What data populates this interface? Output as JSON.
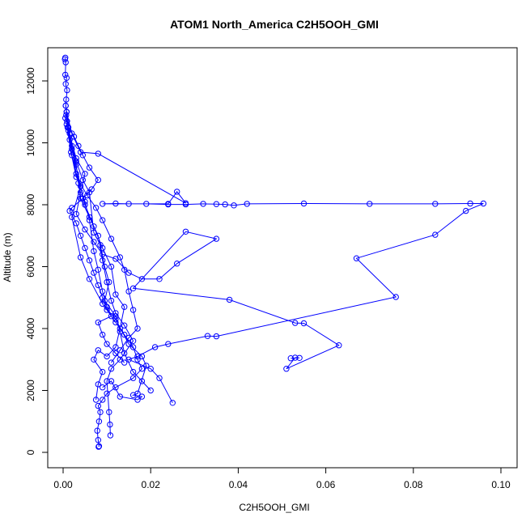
{
  "chart_data": {
    "type": "line",
    "title": "ATOM1 North_America C2H5OOH_GMI",
    "xlabel": "C2H5OOH_GMI",
    "ylabel": "Altitude (m)",
    "xlim": [
      0,
      0.1
    ],
    "ylim": [
      0,
      12800
    ],
    "x_ticks": [
      0,
      0.02,
      0.04,
      0.06,
      0.08,
      0.1
    ],
    "x_tick_labels": [
      "0.00",
      "0.02",
      "0.04",
      "0.06",
      "0.08",
      "0.10"
    ],
    "y_ticks": [
      0,
      2000,
      4000,
      6000,
      8000,
      10000,
      12000
    ],
    "y_tick_labels": [
      "0",
      "2000",
      "4000",
      "6000",
      "8000",
      "10000",
      "12000"
    ],
    "grid": false,
    "legend": "none",
    "series": [
      {
        "color": "#0000ff",
        "marker": "open-circle",
        "points": [
          [
            0.0005,
            12750
          ],
          [
            0.0004,
            12700
          ],
          [
            0.0006,
            12600
          ],
          [
            0.0005,
            12200
          ],
          [
            0.0008,
            12100
          ],
          [
            0.0006,
            11900
          ],
          [
            0.0009,
            11700
          ],
          [
            0.0007,
            11400
          ],
          [
            0.0006,
            11200
          ],
          [
            0.0008,
            11000
          ],
          [
            0.0005,
            10800
          ],
          [
            0.0012,
            10500
          ],
          [
            0.0025,
            10200
          ],
          [
            0.0035,
            9900
          ],
          [
            0.0045,
            9600
          ],
          [
            0.006,
            9200
          ],
          [
            0.008,
            8800
          ],
          [
            0.0065,
            8500
          ],
          [
            0.0045,
            8200
          ],
          [
            0.002,
            7900
          ],
          [
            0.0015,
            7800
          ],
          [
            0.003,
            7400
          ],
          [
            0.004,
            7000
          ],
          [
            0.005,
            6600
          ],
          [
            0.006,
            6200
          ],
          [
            0.007,
            5800
          ],
          [
            0.008,
            5400
          ],
          [
            0.009,
            5000
          ],
          [
            0.01,
            4600
          ],
          [
            0.012,
            4200
          ],
          [
            0.014,
            3800
          ],
          [
            0.016,
            3400
          ],
          [
            0.017,
            3000
          ],
          [
            0.018,
            2700
          ],
          [
            0.016,
            2400
          ],
          [
            0.012,
            2100
          ],
          [
            0.01,
            1900
          ],
          [
            0.009,
            1700
          ],
          [
            0.008,
            1500
          ],
          [
            0.0085,
            1300
          ],
          [
            0.0082,
            1000
          ],
          [
            0.0078,
            700
          ],
          [
            0.008,
            400
          ],
          [
            0.0082,
            200
          ],
          [
            0.0081,
            180
          ]
        ]
      },
      {
        "color": "#0000ff",
        "marker": "open-circle",
        "points": [
          [
            0.0008,
            11000
          ],
          [
            0.002,
            10300
          ],
          [
            0.004,
            9700
          ],
          [
            0.008,
            9650
          ],
          [
            0.028,
            8050
          ],
          [
            0.026,
            8420
          ],
          [
            0.024,
            8030
          ],
          [
            0.009,
            8030
          ],
          [
            0.012,
            8040
          ],
          [
            0.015,
            8030
          ],
          [
            0.019,
            8030
          ],
          [
            0.024,
            8010
          ],
          [
            0.028,
            8010
          ],
          [
            0.032,
            8030
          ],
          [
            0.035,
            8020
          ],
          [
            0.037,
            8010
          ],
          [
            0.039,
            7980
          ],
          [
            0.042,
            8030
          ],
          [
            0.055,
            8040
          ],
          [
            0.07,
            8030
          ],
          [
            0.085,
            8030
          ],
          [
            0.093,
            8040
          ],
          [
            0.096,
            8040
          ],
          [
            0.092,
            7800
          ],
          [
            0.085,
            7030
          ],
          [
            0.067,
            6270
          ],
          [
            0.076,
            5020
          ],
          [
            0.035,
            3750
          ],
          [
            0.033,
            3760
          ],
          [
            0.024,
            3500
          ],
          [
            0.021,
            3400
          ],
          [
            0.017,
            3100
          ],
          [
            0.015,
            3000
          ],
          [
            0.02,
            2700
          ],
          [
            0.022,
            2400
          ],
          [
            0.025,
            1600
          ]
        ]
      },
      {
        "color": "#0000ff",
        "marker": "open-circle",
        "points": [
          [
            0.001,
            10500
          ],
          [
            0.003,
            9500
          ],
          [
            0.005,
            9000
          ],
          [
            0.004,
            8400
          ],
          [
            0.003,
            7700
          ],
          [
            0.005,
            7200
          ],
          [
            0.007,
            6800
          ],
          [
            0.009,
            6400
          ],
          [
            0.012,
            6250
          ],
          [
            0.015,
            5800
          ],
          [
            0.018,
            5600
          ],
          [
            0.022,
            5600
          ],
          [
            0.026,
            6100
          ],
          [
            0.035,
            6900
          ],
          [
            0.028,
            7130
          ],
          [
            0.016,
            5300
          ],
          [
            0.038,
            4930
          ],
          [
            0.053,
            4180
          ],
          [
            0.055,
            4170
          ],
          [
            0.063,
            3460
          ],
          [
            0.051,
            2700
          ],
          [
            0.053,
            3060
          ],
          [
            0.054,
            3050
          ],
          [
            0.052,
            3040
          ]
        ]
      },
      {
        "color": "#0000ff",
        "marker": "open-circle",
        "points": [
          [
            0.0006,
            11200
          ],
          [
            0.002,
            9800
          ],
          [
            0.004,
            8600
          ],
          [
            0.002,
            7600
          ],
          [
            0.004,
            6300
          ],
          [
            0.006,
            5600
          ],
          [
            0.009,
            4800
          ],
          [
            0.012,
            4300
          ],
          [
            0.015,
            3500
          ],
          [
            0.018,
            3100
          ],
          [
            0.019,
            2800
          ],
          [
            0.017,
            1900
          ],
          [
            0.016,
            1850
          ],
          [
            0.018,
            1800
          ],
          [
            0.017,
            1700
          ],
          [
            0.013,
            1800
          ],
          [
            0.011,
            2300
          ],
          [
            0.009,
            2100
          ]
        ]
      },
      {
        "color": "#0000ff",
        "marker": "open-circle",
        "points": [
          [
            0.0007,
            10900
          ],
          [
            0.0015,
            10100
          ],
          [
            0.003,
            9300
          ],
          [
            0.004,
            8200
          ],
          [
            0.006,
            7600
          ],
          [
            0.008,
            7000
          ],
          [
            0.009,
            6200
          ],
          [
            0.01,
            5500
          ],
          [
            0.011,
            4900
          ],
          [
            0.012,
            4500
          ],
          [
            0.014,
            4100
          ],
          [
            0.016,
            3600
          ],
          [
            0.013,
            3000
          ],
          [
            0.011,
            2700
          ],
          [
            0.01,
            2300
          ],
          [
            0.0105,
            1300
          ],
          [
            0.0107,
            900
          ],
          [
            0.0108,
            550
          ]
        ]
      },
      {
        "color": "#0000ff",
        "marker": "open-circle",
        "points": [
          [
            0.0009,
            10700
          ],
          [
            0.002,
            9900
          ],
          [
            0.003,
            9000
          ],
          [
            0.005,
            8000
          ],
          [
            0.007,
            7300
          ],
          [
            0.009,
            6600
          ],
          [
            0.011,
            6000
          ],
          [
            0.012,
            5100
          ],
          [
            0.014,
            4700
          ],
          [
            0.013,
            4000
          ],
          [
            0.012,
            3400
          ],
          [
            0.01,
            3100
          ],
          [
            0.008,
            3300
          ],
          [
            0.007,
            3000
          ],
          [
            0.009,
            2600
          ],
          [
            0.008,
            2200
          ],
          [
            0.0075,
            1700
          ]
        ]
      },
      {
        "color": "#0000ff",
        "marker": "open-circle",
        "points": [
          [
            0.0008,
            10600
          ],
          [
            0.0018,
            9700
          ],
          [
            0.003,
            8900
          ],
          [
            0.0055,
            8300
          ],
          [
            0.0075,
            7900
          ],
          [
            0.009,
            7500
          ],
          [
            0.011,
            6900
          ],
          [
            0.013,
            6300
          ],
          [
            0.014,
            5900
          ],
          [
            0.015,
            5200
          ],
          [
            0.016,
            4600
          ],
          [
            0.017,
            4000
          ],
          [
            0.015,
            3700
          ],
          [
            0.013,
            3300
          ],
          [
            0.011,
            2900
          ]
        ]
      },
      {
        "color": "#0000ff",
        "marker": "open-circle",
        "points": [
          [
            0.0012,
            10400
          ],
          [
            0.002,
            9600
          ],
          [
            0.0035,
            8700
          ],
          [
            0.005,
            8100
          ],
          [
            0.006,
            7500
          ],
          [
            0.007,
            6500
          ],
          [
            0.008,
            5900
          ],
          [
            0.009,
            5200
          ],
          [
            0.01,
            4700
          ],
          [
            0.011,
            4400
          ],
          [
            0.008,
            4200
          ],
          [
            0.009,
            3800
          ],
          [
            0.01,
            3500
          ],
          [
            0.012,
            3200
          ],
          [
            0.014,
            2900
          ]
        ]
      },
      {
        "color": "#0000ff",
        "marker": "open-circle",
        "points": [
          [
            0.0015,
            10300
          ],
          [
            0.003,
            9400
          ],
          [
            0.0045,
            8800
          ],
          [
            0.006,
            8400
          ],
          [
            0.007,
            7100
          ],
          [
            0.0085,
            6700
          ],
          [
            0.0095,
            6000
          ],
          [
            0.0105,
            5500
          ],
          [
            0.0095,
            4900
          ],
          [
            0.012,
            4400
          ],
          [
            0.013,
            3900
          ],
          [
            0.014,
            3200
          ],
          [
            0.016,
            2600
          ],
          [
            0.018,
            2300
          ],
          [
            0.02,
            2000
          ]
        ]
      }
    ]
  }
}
